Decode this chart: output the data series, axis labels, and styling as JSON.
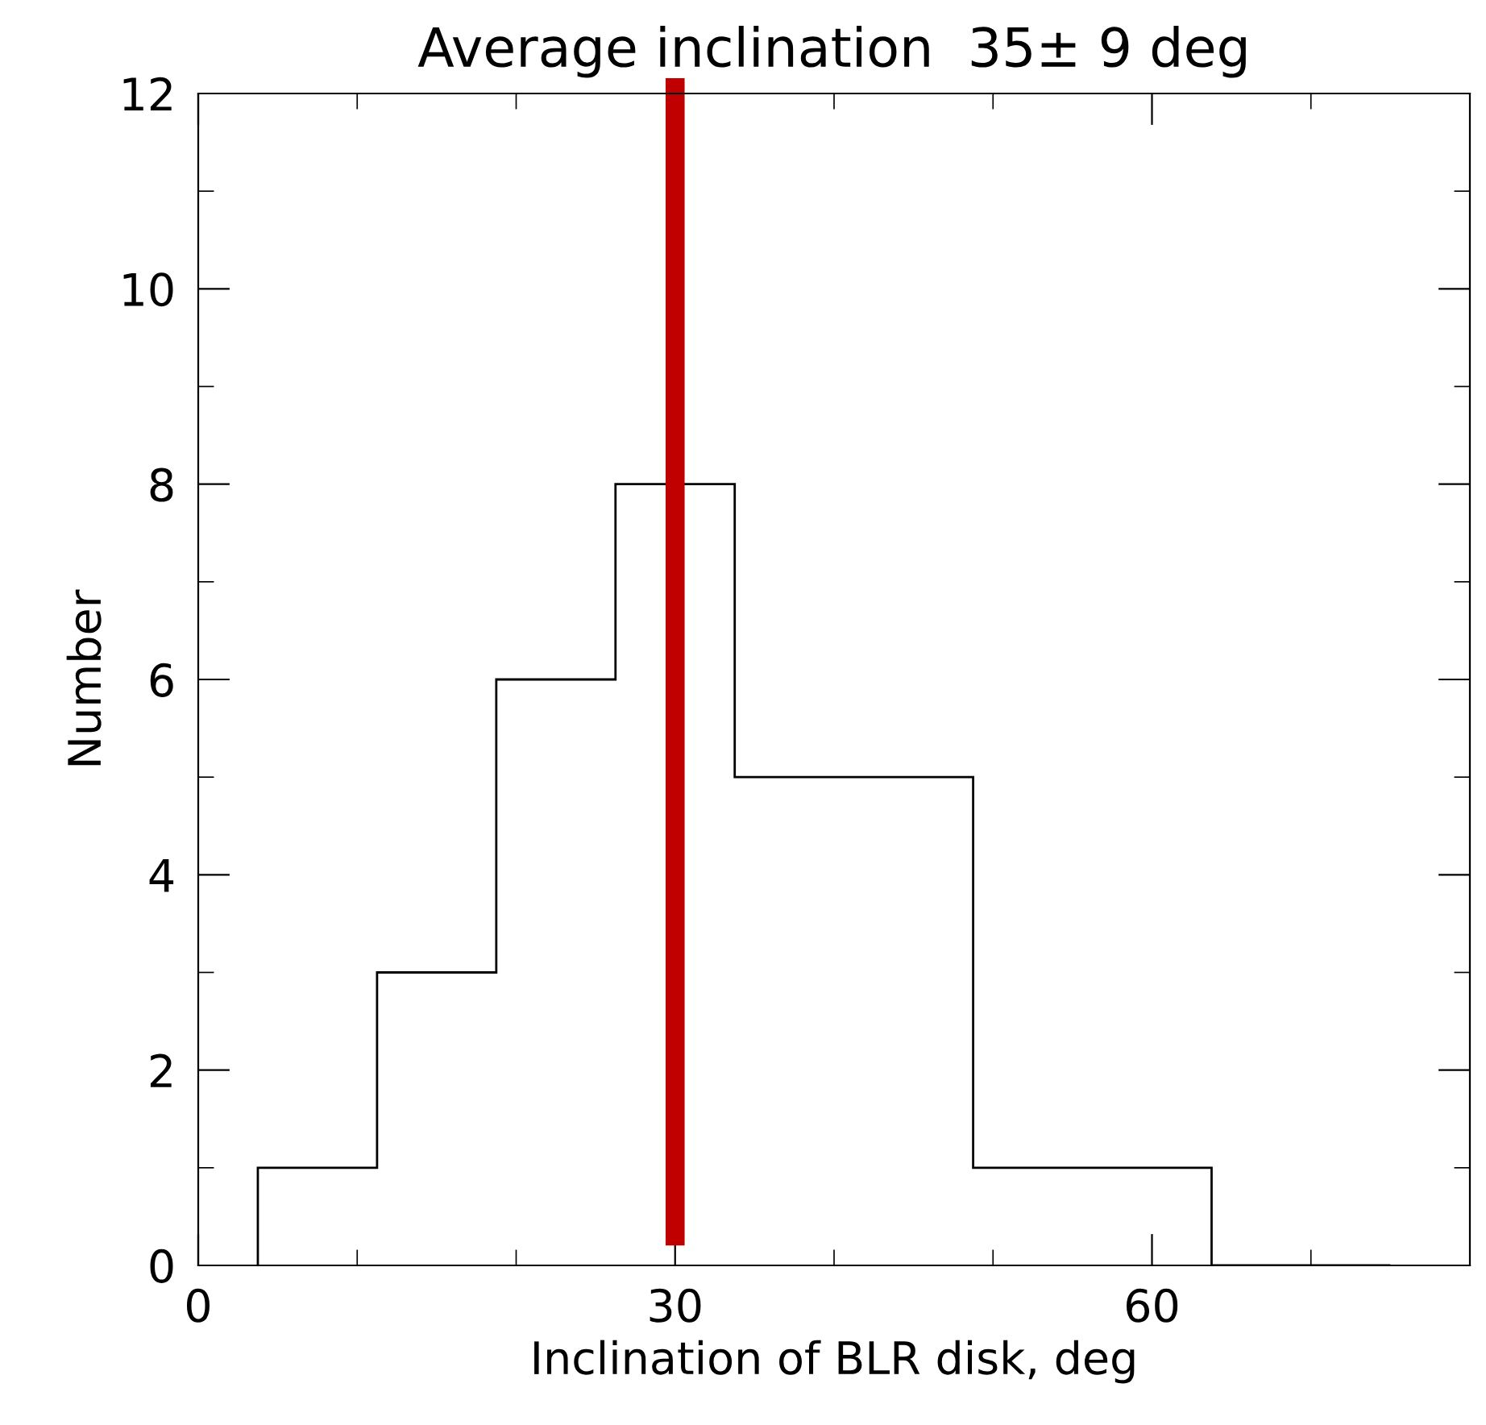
{
  "chart_data": {
    "type": "histogram",
    "title": "Average inclination  35± 9 deg",
    "xlabel": "Inclination of BLR disk, deg",
    "ylabel": "Number",
    "bins": [
      3.75,
      11.25,
      18.75,
      26.25,
      33.75,
      41.25,
      48.75,
      56.25,
      63.75,
      75
    ],
    "values": [
      1,
      3,
      6,
      8,
      5,
      5,
      1,
      1,
      0
    ],
    "color": "#000000",
    "xlim": [
      0,
      80
    ],
    "xticks": [
      0,
      30,
      60
    ],
    "ylim": [
      0,
      12
    ],
    "yticks": [
      0,
      2,
      4,
      6,
      8,
      10,
      12
    ],
    "ref_lines": [
      {
        "axis": "x",
        "value": 30,
        "color": "#c00000"
      }
    ],
    "grid": false,
    "legend": false
  }
}
